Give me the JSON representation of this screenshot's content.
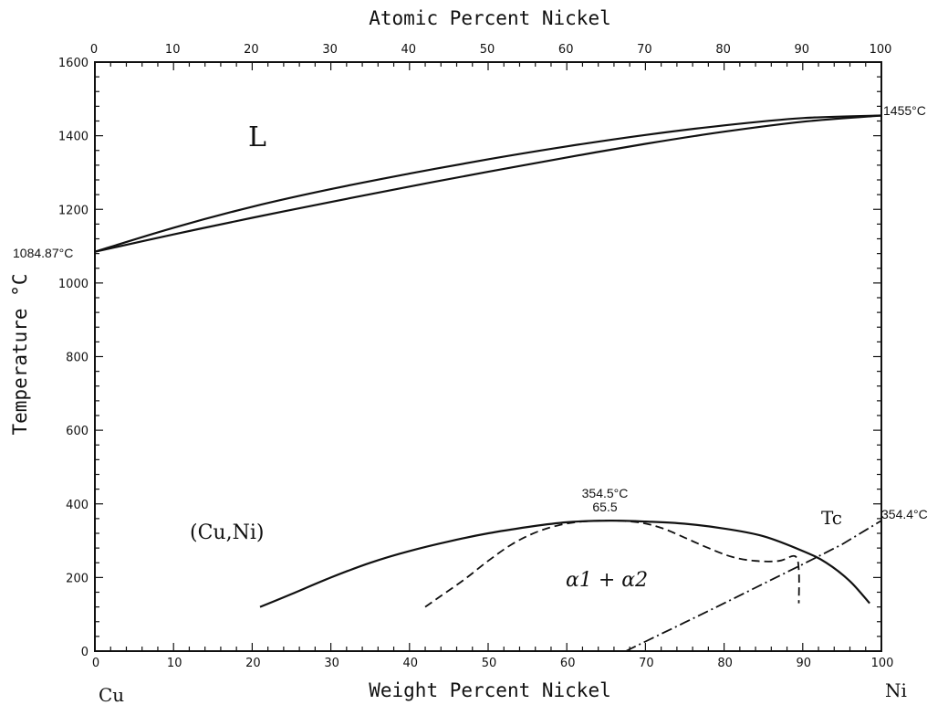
{
  "chart_data": {
    "type": "line",
    "title": "",
    "xlabel": "Weight Percent Nickel",
    "x2label": "Atomic Percent Nickel",
    "ylabel": "Temperature °C",
    "xlim": [
      0,
      100
    ],
    "ylim": [
      0,
      1600
    ],
    "x_ticks": [
      0,
      10,
      20,
      30,
      40,
      50,
      60,
      70,
      80,
      90,
      100
    ],
    "x2_ticks": [
      0,
      10,
      20,
      30,
      40,
      50,
      60,
      70,
      80,
      90,
      100
    ],
    "y_ticks": [
      0,
      200,
      400,
      600,
      800,
      1000,
      1200,
      1400,
      1600
    ],
    "grid": false,
    "left_component": "Cu",
    "right_component": "Ni",
    "series": [
      {
        "style": "solid",
        "x": [
          0,
          10,
          20,
          30,
          40,
          50,
          60,
          70,
          80,
          90,
          100
        ],
        "y": [
          1084.87,
          1150,
          1207,
          1255,
          1297,
          1336,
          1371,
          1402,
          1428,
          1448,
          1455
        ]
      },
      {
        "style": "solid",
        "x": [
          0,
          10,
          20,
          30,
          40,
          50,
          60,
          70,
          80,
          90,
          100
        ],
        "y": [
          1084.87,
          1132,
          1177,
          1220,
          1262,
          1302,
          1341,
          1378,
          1411,
          1438,
          1455
        ]
      },
      {
        "style": "solid",
        "x": [
          21,
          25,
          30,
          35,
          40,
          45,
          50,
          55,
          60,
          65.5,
          70,
          75,
          80,
          85,
          90,
          93,
          96,
          98.5
        ],
        "y": [
          120,
          155,
          200,
          240,
          272,
          298,
          320,
          337,
          350,
          354.5,
          352,
          346,
          333,
          312,
          272,
          240,
          190,
          130
        ]
      },
      {
        "style": "dashed",
        "x": [
          42,
          44,
          47,
          50,
          53,
          56,
          59,
          62,
          65.5,
          69,
          72,
          75,
          78,
          81,
          84,
          87,
          89,
          89.5,
          89.5
        ],
        "y": [
          120,
          150,
          195,
          245,
          290,
          322,
          342,
          352,
          354.5,
          350,
          335,
          308,
          280,
          256,
          245,
          245,
          258,
          220,
          130
        ]
      },
      {
        "name": "Tc",
        "style": "dashdot",
        "x": [
          67.5,
          70,
          75,
          80,
          85,
          90,
          95,
          100
        ],
        "y": [
          0,
          26,
          78,
          130,
          183,
          236,
          290,
          354.4
        ]
      }
    ],
    "annotations": [
      {
        "text": "1455°C",
        "x": 100,
        "y": 1455,
        "anchor": "right-of-axis"
      },
      {
        "text": "1084.87°C",
        "x": 0,
        "y": 1084.87,
        "anchor": "left-of-axis"
      },
      {
        "text": "354.5°C",
        "x": 65.5,
        "y": 354.5
      },
      {
        "text": "65.5",
        "x": 65.5,
        "y": 354.5
      },
      {
        "text": "354.4°C",
        "x": 100,
        "y": 354.4
      },
      {
        "text": "Tc",
        "x": 92,
        "y": 340
      },
      {
        "text": "L",
        "x": 20,
        "y": 1390
      },
      {
        "text": "(Cu,Ni)",
        "x": 18.5,
        "y": 320
      },
      {
        "text": "α1 + α2",
        "x": 65,
        "y": 190
      }
    ]
  }
}
